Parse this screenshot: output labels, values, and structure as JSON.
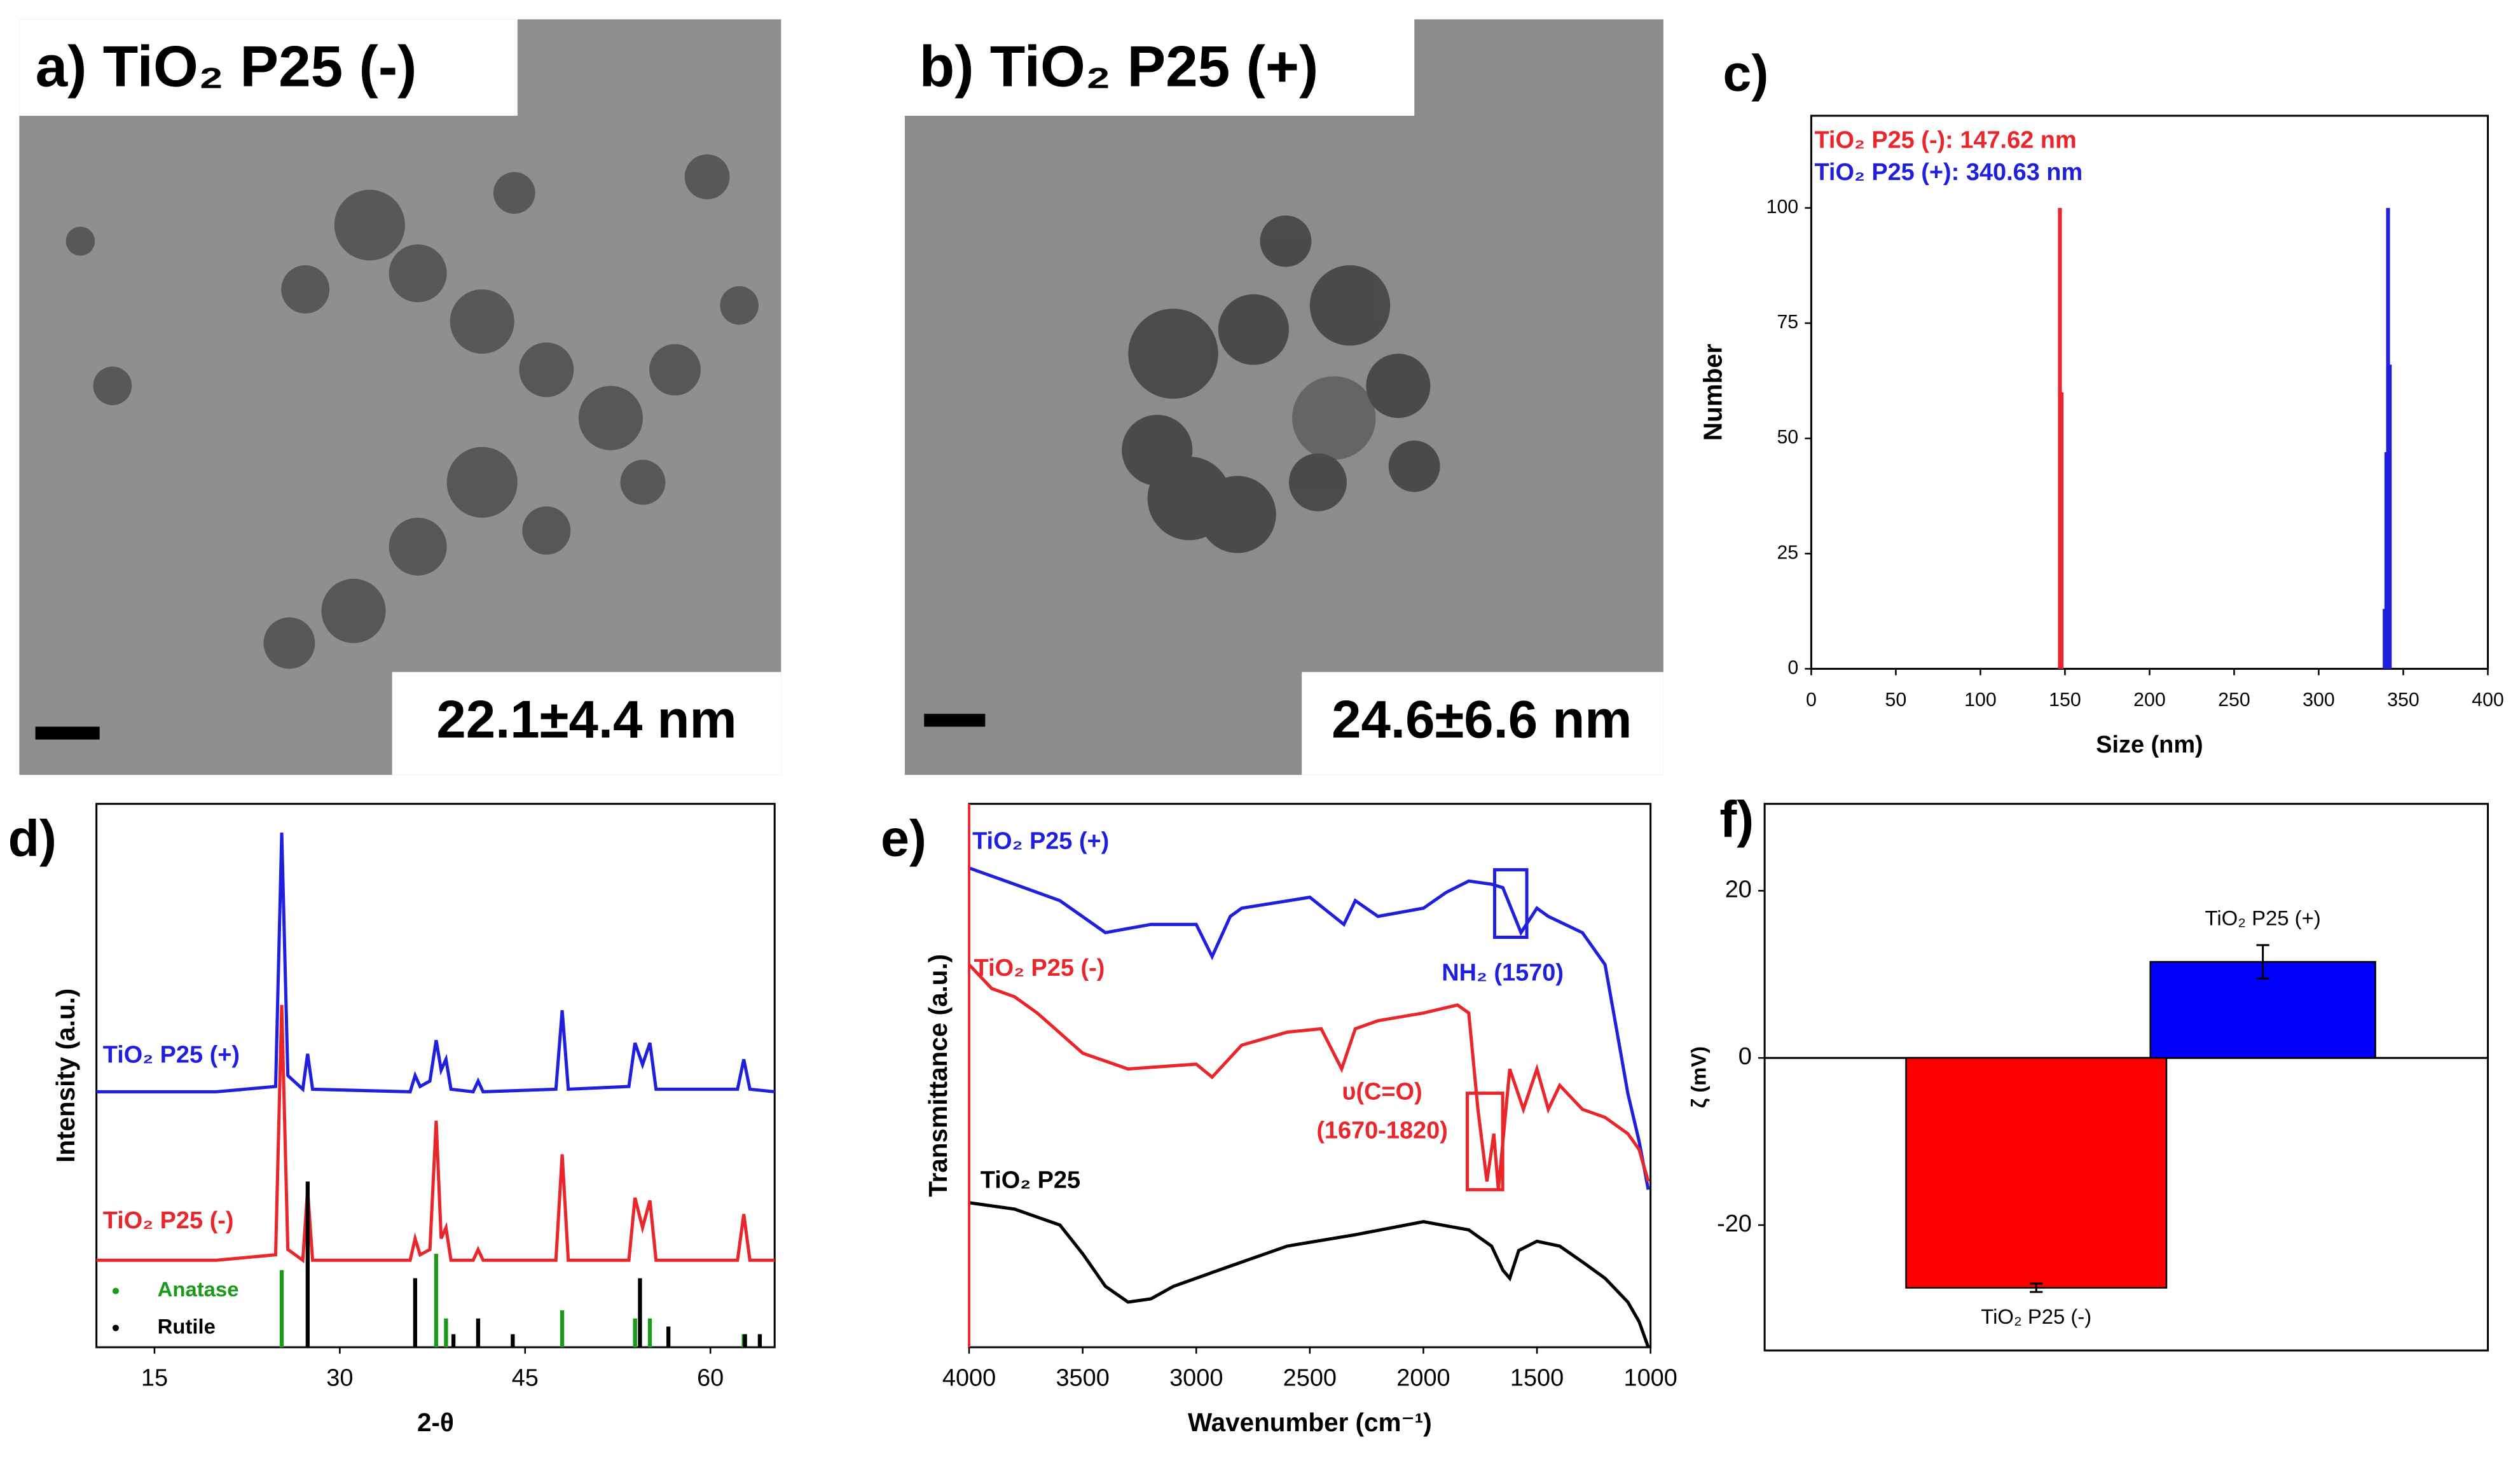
{
  "chart_data": [
    {
      "type": "image",
      "title": "a) TiO₂ P25 (-)",
      "annotation": "22.1±4.4 nm"
    },
    {
      "type": "image",
      "title": "b) TiO₂ P25 (+)",
      "annotation": "24.6±6.6 nm"
    },
    {
      "type": "bar",
      "title": "c)",
      "x_label": "Size (nm)",
      "y_label": "Number",
      "xlim": [
        0,
        400
      ],
      "xticks": [
        0,
        50,
        100,
        150,
        200,
        250,
        300,
        350,
        400
      ],
      "ylim": [
        0,
        120
      ],
      "yticks": [
        0,
        25,
        50,
        75,
        100
      ],
      "series": [
        {
          "name": "TiO₂ P25 (-): 147.62 nm",
          "color": "#e8262b",
          "x": [
            147,
            148
          ],
          "values": [
            100,
            60
          ]
        },
        {
          "name": "TiO₂ P25 (+): 340.63 nm",
          "color": "#1f1fdd",
          "x": [
            339,
            340,
            341,
            342
          ],
          "values": [
            13,
            47,
            100,
            66
          ]
        }
      ]
    },
    {
      "type": "line",
      "title": "d)",
      "x_label": "2-θ",
      "y_label": "Intensity (a.u.)",
      "xlim": [
        10.3,
        65.2
      ],
      "xticks": [
        15,
        30,
        45,
        60
      ],
      "ylim": [
        0,
        100
      ],
      "series": [
        {
          "name": "TiO₂ P25 (+)",
          "color": "#1f1fdd",
          "x": [
            10.3,
            15,
            20,
            24.8,
            25.3,
            25.8,
            27.0,
            27.4,
            27.8,
            35.7,
            36.1,
            36.5,
            37.3,
            37.8,
            38.2,
            38.6,
            39.0,
            40.8,
            41.2,
            41.6,
            47.5,
            48.0,
            48.5,
            53.4,
            53.9,
            54.5,
            55.1,
            55.6,
            62.2,
            62.7,
            63.2,
            65.2
          ],
          "values": [
            47,
            47,
            47,
            48,
            94.7,
            50,
            47.5,
            54,
            47.5,
            47,
            50,
            48,
            49,
            56.5,
            51,
            53,
            47.5,
            47,
            49,
            47,
            47.5,
            62,
            47.5,
            48,
            56,
            52,
            56,
            47.5,
            47.5,
            53,
            47.5,
            47
          ]
        },
        {
          "name": "TiO₂ P25 (-)",
          "color": "#e8262b",
          "x": [
            10.3,
            15,
            20,
            24.8,
            25.3,
            25.8,
            27.0,
            27.4,
            27.8,
            35.7,
            36.1,
            36.5,
            37.3,
            37.8,
            38.2,
            38.6,
            39.0,
            40.8,
            41.2,
            41.6,
            47.5,
            48.0,
            48.5,
            53.4,
            53.9,
            54.5,
            55.1,
            55.6,
            62.2,
            62.7,
            63.2,
            65.2
          ],
          "values": [
            16,
            16,
            16,
            17,
            63,
            18,
            16,
            29,
            16,
            16,
            20,
            17,
            18,
            41.7,
            20,
            22,
            16,
            16,
            18,
            16,
            16,
            35.5,
            16,
            16,
            27.5,
            22,
            27,
            16,
            16,
            24.5,
            16,
            16
          ]
        },
        {
          "name": "Anatase",
          "color": "#1a9a1a",
          "style": "stick",
          "x": [
            25.3,
            37.8,
            38.6,
            48.0,
            53.9,
            55.1,
            62.7
          ],
          "values": [
            14.2,
            17.2,
            5.3,
            6.8,
            5.3,
            5.3,
            2.4
          ]
        },
        {
          "name": "Rutile",
          "color": "#000000",
          "style": "stick",
          "x": [
            27.4,
            36.1,
            39.2,
            41.2,
            44.0,
            54.3,
            56.6,
            62.8,
            64.0
          ],
          "values": [
            30.5,
            12.7,
            2.4,
            5.3,
            2.4,
            12.7,
            3.8,
            2.4,
            2.4
          ]
        }
      ]
    },
    {
      "type": "line",
      "title": "e)",
      "x_label": "Wavenumber (cm⁻¹)",
      "y_label": "Transmittance (a.u.)",
      "xlim": [
        4000,
        1000
      ],
      "xticks": [
        4000,
        3500,
        3000,
        2500,
        2000,
        1500,
        1000
      ],
      "ylim": [
        0,
        100
      ],
      "annotations": [
        "NH₂ (1570)",
        "υ(C=O)",
        "(1670-1820)"
      ],
      "series": [
        {
          "name": "TiO₂ P25 (+)",
          "color": "#1f1fdd",
          "x": [
            4000,
            3800,
            3600,
            3400,
            3200,
            3000,
            2930,
            2850,
            2800,
            2500,
            2350,
            2300,
            2200,
            2000,
            1900,
            1800,
            1700,
            1650,
            1570,
            1500,
            1450,
            1300,
            1200,
            1150,
            1100,
            1050,
            1010
          ],
          "values": [
            88.2,
            85.2,
            82.2,
            76.3,
            77.8,
            77.8,
            71.9,
            79.3,
            80.8,
            82.8,
            77.8,
            82.2,
            79.3,
            80.8,
            83.7,
            85.8,
            85.2,
            84.6,
            76.3,
            80.8,
            79.3,
            76.3,
            70.4,
            58.6,
            46.7,
            37.9,
            29.0
          ]
        },
        {
          "name": "TiO₂ P25 (-)",
          "color": "#e8262b",
          "x": [
            4000,
            3900,
            3800,
            3700,
            3500,
            3300,
            3100,
            3000,
            2930,
            2800,
            2600,
            2450,
            2360,
            2300,
            2200,
            2000,
            1850,
            1800,
            1760,
            1720,
            1690,
            1670,
            1620,
            1560,
            1500,
            1450,
            1400,
            1300,
            1200,
            1100,
            1050,
            1010
          ],
          "values": [
            70.4,
            66.0,
            64.5,
            61.5,
            54.1,
            51.2,
            51.8,
            52.1,
            49.7,
            55.6,
            58.0,
            58.6,
            51.2,
            58.6,
            60.1,
            61.5,
            63.0,
            61.5,
            43.8,
            30.5,
            39.3,
            29.0,
            51.2,
            43.8,
            51.2,
            43.8,
            48.2,
            43.8,
            42.3,
            39.3,
            36.4,
            30.5
          ]
        },
        {
          "name": "TiO₂ P25",
          "color": "#000000",
          "x": [
            4000,
            3800,
            3600,
            3500,
            3400,
            3300,
            3200,
            3100,
            2900,
            2600,
            2300,
            2000,
            1800,
            1700,
            1650,
            1620,
            1580,
            1500,
            1400,
            1300,
            1200,
            1100,
            1050,
            1010
          ],
          "values": [
            26.6,
            25.4,
            22.5,
            17.2,
            11.2,
            8.3,
            8.9,
            11.2,
            14.2,
            18.6,
            20.7,
            23.1,
            21.6,
            18.6,
            14.2,
            12.7,
            17.8,
            19.5,
            18.6,
            15.7,
            12.7,
            8.3,
            4.7,
            0
          ]
        }
      ]
    },
    {
      "type": "bar",
      "title": "f)",
      "y_label": "ζ (mV)",
      "ylim": [
        -35,
        30.4
      ],
      "yticks": [
        -20,
        0,
        20
      ],
      "categories": [
        "TiO₂ P25 (-)",
        "TiO₂ P25 (+)"
      ],
      "colors": [
        "#ff0000",
        "#0000ff"
      ],
      "values": [
        -27.5,
        11.5
      ],
      "errors": [
        0.5,
        2
      ]
    }
  ]
}
